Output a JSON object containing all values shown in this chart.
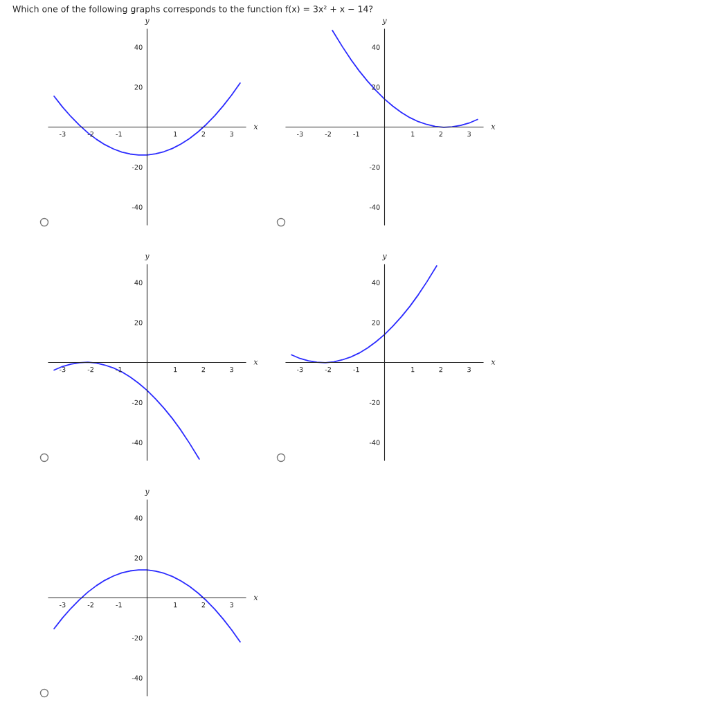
{
  "chart_data": [
    {
      "type": "line",
      "title": "Which one of the following graphs corresponds to the function f(x) = 3x² + x − 14?",
      "xlabel": "x",
      "ylabel": "y",
      "xlim": [
        -3.5,
        3.5
      ],
      "ylim": [
        -49,
        49
      ],
      "xticks": [
        -3,
        -2,
        -1,
        1,
        2,
        3
      ],
      "yticks": [
        -40,
        -20,
        20,
        40
      ],
      "grid": false,
      "legend": false,
      "series": [
        {
          "color": "#2b2bff",
          "x": [
            -3.3,
            -3.0,
            -2.7,
            -2.4,
            -2.1,
            -1.8,
            -1.5,
            -1.2,
            -0.9,
            -0.6,
            -0.3,
            0,
            0.3,
            0.6,
            0.9,
            1.2,
            1.5,
            1.8,
            2.1,
            2.4,
            2.7,
            3.0,
            3.3
          ],
          "values": [
            15.4,
            10,
            5.2,
            0.9,
            -2.9,
            -6.1,
            -8.8,
            -10.9,
            -12.5,
            -13.5,
            -14.0,
            -14,
            -13.4,
            -12.3,
            -10.7,
            -8.5,
            -5.8,
            -2.5,
            1.3,
            5.7,
            10.6,
            16,
            22.0
          ]
        }
      ]
    },
    {
      "type": "line",
      "xlabel": "x",
      "ylabel": "y",
      "xlim": [
        -3.5,
        3.5
      ],
      "ylim": [
        -49,
        49
      ],
      "xticks": [
        -3,
        -2,
        -1,
        1,
        2,
        3
      ],
      "yticks": [
        -40,
        -20,
        20,
        40
      ],
      "grid": false,
      "legend": false,
      "series": [
        {
          "color": "#2b2bff",
          "x": [
            -1.85,
            -1.5,
            -1.2,
            -0.9,
            -0.6,
            -0.3,
            0,
            0.3,
            0.6,
            0.9,
            1.2,
            1.5,
            1.8,
            2.1,
            2.4,
            2.7,
            3.0,
            3.3
          ],
          "values": [
            48.3,
            40.3,
            33.9,
            28.1,
            22.9,
            18.2,
            14,
            10.4,
            7.3,
            4.7,
            2.7,
            1.3,
            0.3,
            -0.1,
            0.1,
            0.8,
            2,
            3.8
          ]
        }
      ]
    },
    {
      "type": "line",
      "xlabel": "x",
      "ylabel": "y",
      "xlim": [
        -3.5,
        3.5
      ],
      "ylim": [
        -49,
        49
      ],
      "xticks": [
        -3,
        -2,
        -1,
        1,
        2,
        3
      ],
      "yticks": [
        -40,
        -20,
        20,
        40
      ],
      "grid": false,
      "legend": false,
      "series": [
        {
          "color": "#2b2bff",
          "x": [
            -3.3,
            -3.0,
            -2.7,
            -2.4,
            -2.1,
            -1.8,
            -1.5,
            -1.2,
            -0.9,
            -0.6,
            -0.3,
            0,
            0.3,
            0.6,
            0.9,
            1.2,
            1.5,
            1.85
          ],
          "values": [
            -3.8,
            -2,
            -0.8,
            -0.1,
            0.1,
            -0.3,
            -1.3,
            -2.7,
            -4.7,
            -7.3,
            -10.4,
            -14,
            -18.2,
            -22.9,
            -28.1,
            -33.9,
            -40.3,
            -48.3
          ]
        }
      ]
    },
    {
      "type": "line",
      "xlabel": "x",
      "ylabel": "y",
      "xlim": [
        -3.5,
        3.5
      ],
      "ylim": [
        -49,
        49
      ],
      "xticks": [
        -3,
        -2,
        -1,
        1,
        2,
        3
      ],
      "yticks": [
        -40,
        -20,
        20,
        40
      ],
      "grid": false,
      "legend": false,
      "series": [
        {
          "color": "#2b2bff",
          "x": [
            -3.3,
            -3.0,
            -2.7,
            -2.4,
            -2.1,
            -1.8,
            -1.5,
            -1.2,
            -0.9,
            -0.6,
            -0.3,
            0,
            0.3,
            0.6,
            0.9,
            1.2,
            1.5,
            1.85
          ],
          "values": [
            3.8,
            2,
            0.8,
            0.1,
            -0.1,
            0.3,
            1.3,
            2.7,
            4.7,
            7.3,
            10.4,
            14,
            18.2,
            22.9,
            28.1,
            33.9,
            40.3,
            48.3
          ]
        }
      ]
    },
    {
      "type": "line",
      "xlabel": "x",
      "ylabel": "y",
      "xlim": [
        -3.5,
        3.5
      ],
      "ylim": [
        -49,
        49
      ],
      "xticks": [
        -3,
        -2,
        -1,
        1,
        2,
        3
      ],
      "yticks": [
        -40,
        -20,
        20,
        40
      ],
      "grid": false,
      "legend": false,
      "series": [
        {
          "color": "#2b2bff",
          "x": [
            -3.3,
            -3.0,
            -2.7,
            -2.4,
            -2.1,
            -1.8,
            -1.5,
            -1.2,
            -0.9,
            -0.6,
            -0.3,
            0,
            0.3,
            0.6,
            0.9,
            1.2,
            1.5,
            1.8,
            2.1,
            2.4,
            2.7,
            3.0,
            3.3
          ],
          "values": [
            -15.4,
            -10,
            -5.2,
            -0.9,
            2.9,
            6.1,
            8.8,
            10.9,
            12.5,
            13.5,
            14.0,
            14,
            13.4,
            12.3,
            10.7,
            8.5,
            5.8,
            2.5,
            -1.3,
            -5.7,
            -10.6,
            -16,
            -22.0
          ]
        }
      ]
    }
  ]
}
